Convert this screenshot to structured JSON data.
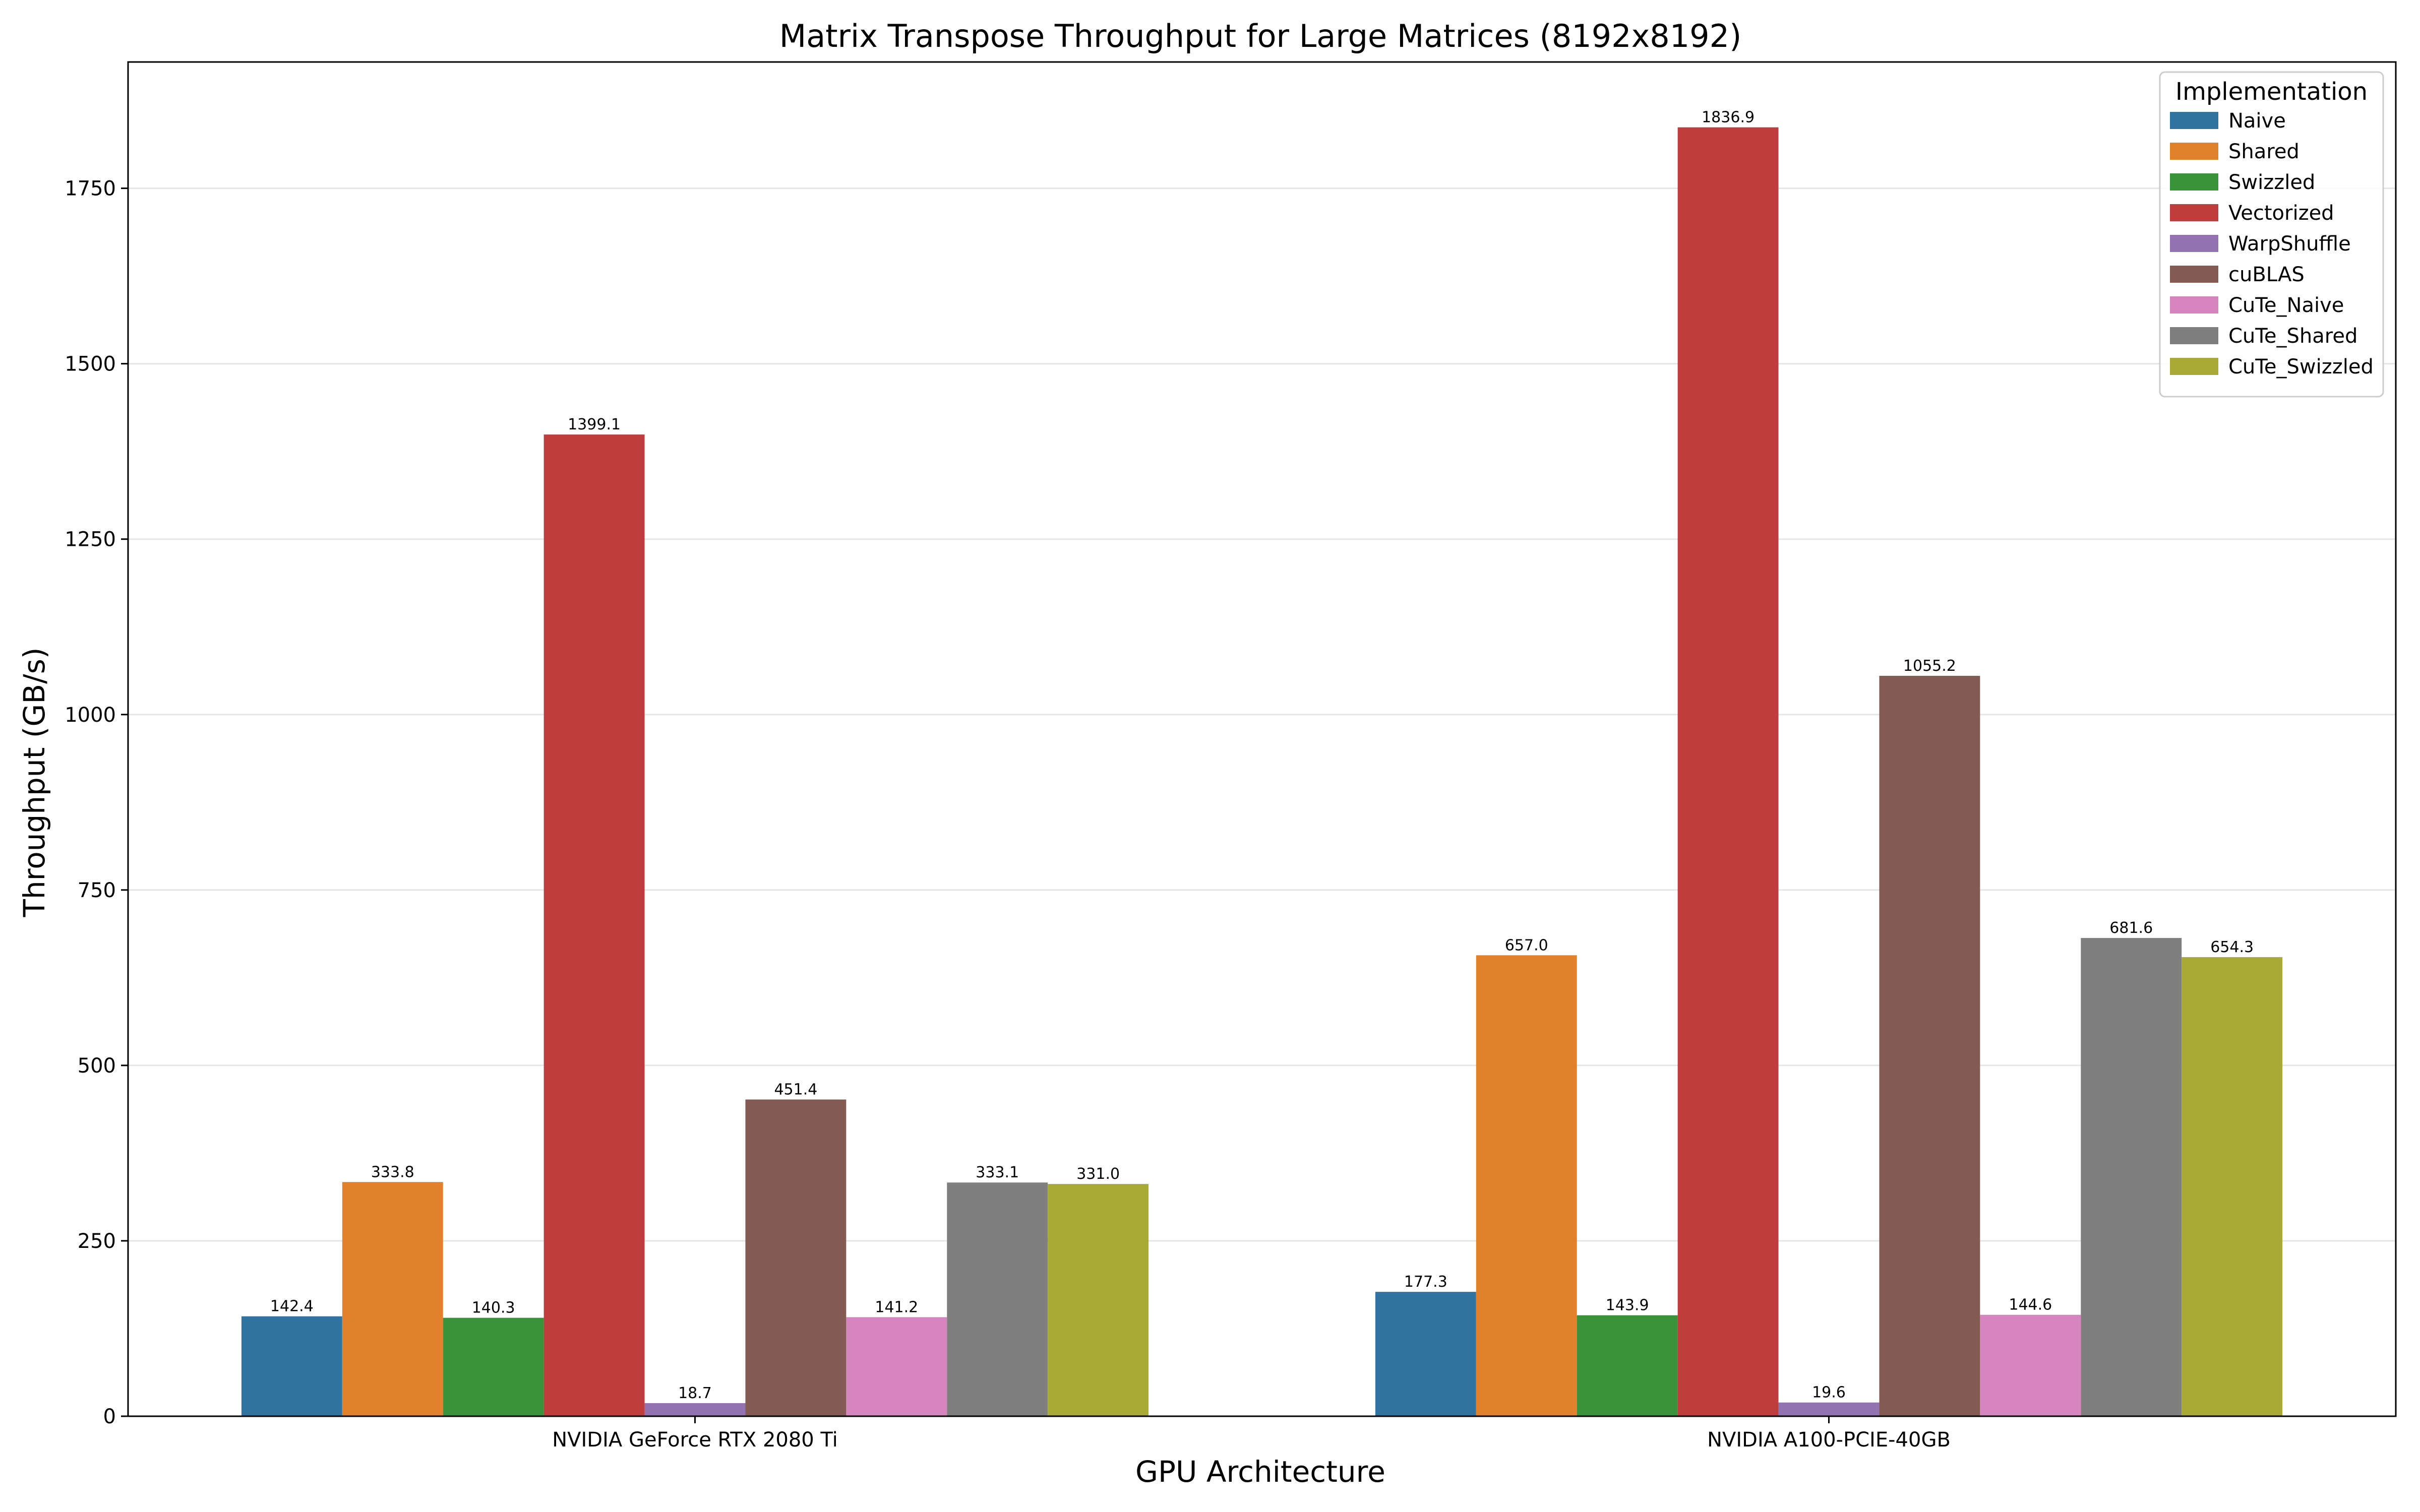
{
  "chart_data": {
    "type": "bar",
    "title": "Matrix Transpose Throughput for Large Matrices (8192x8192)",
    "xlabel": "GPU Architecture",
    "ylabel": "Throughput (GB/s)",
    "ylim": [
      0,
      1930
    ],
    "yticks": [
      0,
      250,
      500,
      750,
      1000,
      1250,
      1500,
      1750
    ],
    "grid": "y",
    "legend": {
      "title": "Implementation",
      "placement": "top-right"
    },
    "categories": [
      "NVIDIA GeForce RTX 2080 Ti",
      "NVIDIA A100-PCIE-40GB"
    ],
    "series": [
      {
        "name": "Naive",
        "color": "#3274a1",
        "values": [
          142.4,
          177.3
        ],
        "labels": [
          "142.4",
          "177.3"
        ]
      },
      {
        "name": "Shared",
        "color": "#e1812c",
        "values": [
          333.8,
          657.0
        ],
        "labels": [
          "333.8",
          "657.0"
        ]
      },
      {
        "name": "Swizzled",
        "color": "#3a923a",
        "values": [
          140.3,
          143.9
        ],
        "labels": [
          "140.3",
          "143.9"
        ]
      },
      {
        "name": "Vectorized",
        "color": "#c03d3e",
        "values": [
          1399.1,
          1836.9
        ],
        "labels": [
          "1399.1",
          "1836.9"
        ]
      },
      {
        "name": "WarpShuffle",
        "color": "#9372b2",
        "values": [
          18.7,
          19.6
        ],
        "labels": [
          "18.7",
          "19.6"
        ]
      },
      {
        "name": "cuBLAS",
        "color": "#845b53",
        "values": [
          451.4,
          1055.2
        ],
        "labels": [
          "451.4",
          "1055.2"
        ]
      },
      {
        "name": "CuTe_Naive",
        "color": "#d684bd",
        "values": [
          141.2,
          144.6
        ],
        "labels": [
          "141.2",
          "144.6"
        ]
      },
      {
        "name": "CuTe_Shared",
        "color": "#7f7f7f",
        "values": [
          333.1,
          681.6
        ],
        "labels": [
          "333.1",
          "681.6"
        ]
      },
      {
        "name": "CuTe_Swizzled",
        "color": "#a9aa35",
        "values": [
          331.0,
          654.3
        ],
        "labels": [
          "331.0",
          "654.3"
        ]
      }
    ]
  }
}
